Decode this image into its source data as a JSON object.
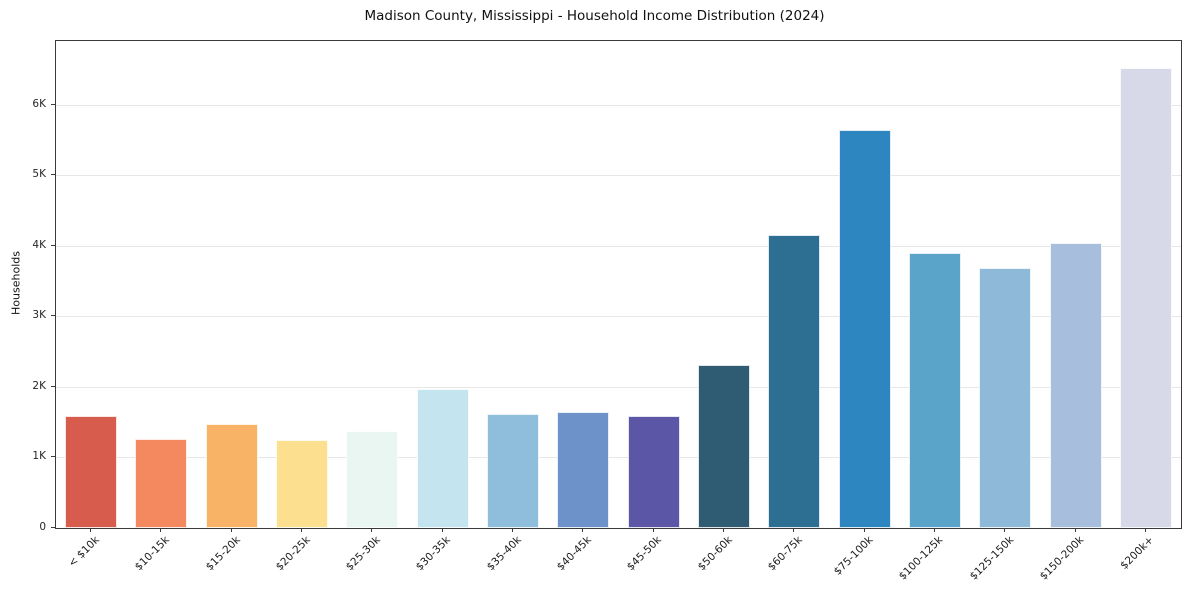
{
  "chart_data": {
    "type": "bar",
    "title": "Madison County, Mississippi - Household Income Distribution (2024)",
    "xlabel": "",
    "ylabel": "Households",
    "categories": [
      "< $10k",
      "$10-15k",
      "$15-20k",
      "$20-25k",
      "$25-30k",
      "$30-35k",
      "$35-40k",
      "$40-45k",
      "$45-50k",
      "$50-60k",
      "$60-75k",
      "$75-100k",
      "$100-125k",
      "$125-150k",
      "$150-200k",
      "$200k+"
    ],
    "values": [
      1580,
      1260,
      1480,
      1240,
      1370,
      1970,
      1610,
      1640,
      1580,
      2310,
      4150,
      5640,
      3900,
      3680,
      4040,
      6520
    ],
    "bar_colors": [
      "#d85c4d",
      "#f4895f",
      "#f9b367",
      "#fcdf8f",
      "#e9f6f2",
      "#c4e5ef",
      "#8fbedc",
      "#6d92c9",
      "#5b57a6",
      "#2f5c72",
      "#2d6f93",
      "#2e86c0",
      "#5aa3c9",
      "#8fb9d9",
      "#a7bfdc",
      "#d8d9e8"
    ],
    "ylim": [
      0,
      6900
    ],
    "yticks": [
      0,
      1000,
      2000,
      3000,
      4000,
      5000,
      6000
    ],
    "ytick_labels": [
      "0",
      "1K",
      "2K",
      "3K",
      "4K",
      "5K",
      "6K"
    ],
    "grid": "horizontal",
    "legend": "none",
    "background": "#ffffff"
  }
}
